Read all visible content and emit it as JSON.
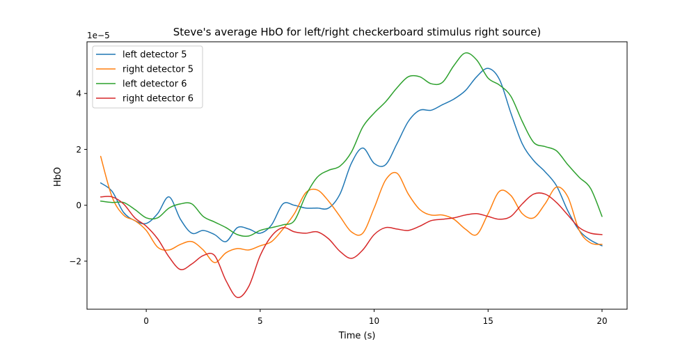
{
  "chart_data": {
    "type": "line",
    "title": "Steve's average HbO for left/right checkerboard stimulus right source)",
    "xlabel": "Time (s)",
    "ylabel": "HbO",
    "y_offset_text": "1e−5",
    "xlim": [
      -2.6,
      21.1
    ],
    "ylim": [
      -3.72,
      5.85
    ],
    "x_ticks": [
      0,
      5,
      10,
      15,
      20
    ],
    "x_tick_labels": [
      "0",
      "5",
      "10",
      "15",
      "20"
    ],
    "y_ticks": [
      -2,
      0,
      2,
      4
    ],
    "y_tick_labels": [
      "−2",
      "0",
      "2",
      "4"
    ],
    "grid": false,
    "legend_position": "top-left",
    "series": [
      {
        "name": "left detector 5",
        "color": "#1f77b4",
        "x": [
          -2,
          -1.5,
          -1,
          -0.5,
          0,
          0.5,
          1,
          1.5,
          2,
          2.5,
          3,
          3.5,
          4,
          4.5,
          5,
          5.5,
          6,
          6.5,
          7,
          7.5,
          8,
          8.5,
          9,
          9.5,
          10,
          10.5,
          11,
          11.5,
          12,
          12.5,
          13,
          13.5,
          14,
          14.5,
          15,
          15.5,
          16,
          16.5,
          17,
          17.5,
          18,
          18.5,
          19,
          19.5,
          20
        ],
        "values": [
          0.8,
          0.5,
          -0.25,
          -0.55,
          -0.65,
          -0.3,
          0.3,
          -0.5,
          -1.0,
          -0.9,
          -1.05,
          -1.3,
          -0.8,
          -0.85,
          -1.0,
          -0.7,
          0.05,
          0.0,
          -0.1,
          -0.1,
          -0.1,
          0.4,
          1.5,
          2.05,
          1.5,
          1.45,
          2.2,
          3.0,
          3.4,
          3.4,
          3.6,
          3.8,
          4.1,
          4.6,
          4.9,
          4.5,
          3.3,
          2.2,
          1.6,
          1.2,
          0.7,
          -0.2,
          -0.9,
          -1.25,
          -1.45
        ]
      },
      {
        "name": "right detector 5",
        "color": "#ff7f0e",
        "x": [
          -2,
          -1.5,
          -1,
          -0.5,
          0,
          0.5,
          1,
          1.5,
          2,
          2.5,
          3,
          3.5,
          4,
          4.5,
          5,
          5.5,
          6,
          6.5,
          7,
          7.5,
          8,
          8.5,
          9,
          9.5,
          10,
          10.5,
          11,
          11.5,
          12,
          12.5,
          13,
          13.5,
          14,
          14.5,
          15,
          15.5,
          16,
          16.5,
          17,
          17.5,
          18,
          18.5,
          19,
          19.5,
          20
        ],
        "values": [
          1.75,
          0.3,
          -0.35,
          -0.55,
          -0.9,
          -1.5,
          -1.6,
          -1.4,
          -1.3,
          -1.6,
          -2.05,
          -1.7,
          -1.55,
          -1.6,
          -1.45,
          -1.3,
          -0.85,
          -0.3,
          0.45,
          0.55,
          0.15,
          -0.4,
          -0.95,
          -1.0,
          -0.1,
          0.9,
          1.15,
          0.4,
          -0.15,
          -0.35,
          -0.35,
          -0.5,
          -0.85,
          -1.05,
          -0.3,
          0.5,
          0.35,
          -0.3,
          -0.45,
          0.05,
          0.65,
          0.3,
          -0.9,
          -1.35,
          -1.4
        ]
      },
      {
        "name": "left detector 6",
        "color": "#2ca02c",
        "x": [
          -2,
          -1.5,
          -1,
          -0.5,
          0,
          0.5,
          1,
          1.5,
          2,
          2.5,
          3,
          3.5,
          4,
          4.5,
          5,
          5.5,
          6,
          6.5,
          7,
          7.5,
          8,
          8.5,
          9,
          9.5,
          10,
          10.5,
          11,
          11.5,
          12,
          12.5,
          13,
          13.5,
          14,
          14.5,
          15,
          15.5,
          16,
          16.5,
          17,
          17.5,
          18,
          18.5,
          19,
          19.5,
          20
        ],
        "values": [
          0.15,
          0.1,
          0.1,
          -0.15,
          -0.45,
          -0.45,
          -0.1,
          0.05,
          0.05,
          -0.4,
          -0.6,
          -0.8,
          -1.05,
          -1.1,
          -0.9,
          -0.8,
          -0.7,
          -0.55,
          0.35,
          1.0,
          1.25,
          1.4,
          1.9,
          2.8,
          3.3,
          3.7,
          4.2,
          4.6,
          4.6,
          4.35,
          4.4,
          5.0,
          5.45,
          5.2,
          4.55,
          4.3,
          3.9,
          3.0,
          2.25,
          2.1,
          1.95,
          1.45,
          1.0,
          0.6,
          -0.4
        ]
      },
      {
        "name": "right detector 6",
        "color": "#d62728",
        "x": [
          -2,
          -1.5,
          -1,
          -0.5,
          0,
          0.5,
          1,
          1.5,
          2,
          2.5,
          3,
          3.5,
          4,
          4.5,
          5,
          5.5,
          6,
          6.5,
          7,
          7.5,
          8,
          8.5,
          9,
          9.5,
          10,
          10.5,
          11,
          11.5,
          12,
          12.5,
          13,
          13.5,
          14,
          14.5,
          15,
          15.5,
          16,
          16.5,
          17,
          17.5,
          18,
          18.5,
          19,
          19.5,
          20
        ],
        "values": [
          0.3,
          0.3,
          0.05,
          -0.45,
          -0.75,
          -1.2,
          -1.85,
          -2.3,
          -2.1,
          -1.8,
          -1.8,
          -2.7,
          -3.3,
          -2.9,
          -1.8,
          -1.1,
          -0.8,
          -0.95,
          -1.0,
          -0.95,
          -1.2,
          -1.65,
          -1.9,
          -1.6,
          -1.05,
          -0.8,
          -0.85,
          -0.9,
          -0.75,
          -0.55,
          -0.5,
          -0.45,
          -0.35,
          -0.3,
          -0.4,
          -0.5,
          -0.4,
          0.05,
          0.4,
          0.4,
          0.1,
          -0.35,
          -0.8,
          -1.0,
          -1.05
        ]
      }
    ]
  }
}
